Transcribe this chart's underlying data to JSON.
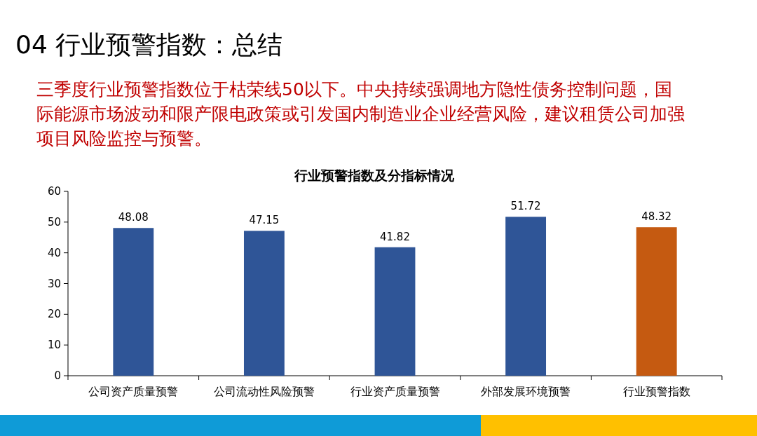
{
  "chart_data": {
    "type": "bar",
    "title": "行业预警指数及分指标情况",
    "annotations": [
      "04 行业预警指数：总结",
      "三季度行业预警指数位于枯荣线50以下。中央持续强调地方隐性债务控制问题，国际能源市场波动和限产限电政策或引发国内制造业企业经营风险，建议租赁公司加强项目风险监控与预警。"
    ],
    "categories": [
      "公司资产质量预警",
      "公司流动性风险预警",
      "行业资产质量预警",
      "外部发展环境预警",
      "行业预警指数"
    ],
    "values": [
      48.08,
      47.15,
      41.82,
      51.72,
      48.32
    ],
    "colors": [
      "#2f5597",
      "#2f5597",
      "#2f5597",
      "#2f5597",
      "#c55a11"
    ],
    "ylim": [
      0,
      60
    ],
    "yticks": [
      0,
      10,
      20,
      30,
      40,
      50,
      60
    ],
    "data_labels": true
  }
}
